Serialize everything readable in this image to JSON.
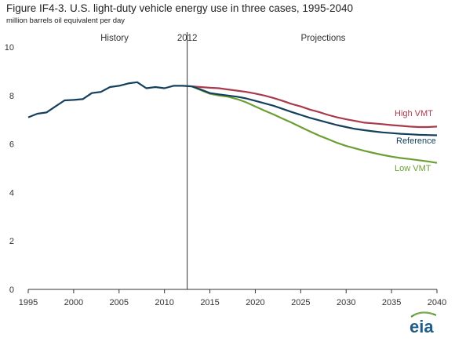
{
  "title": "Figure IF4-3. U.S. light-duty vehicle energy use in three cases, 1995-2040",
  "subtitle": "million barrels oil equivalent per day",
  "logo_text": "eia",
  "colors": {
    "high": "#a83a4b",
    "reference": "#14405e",
    "low": "#6c9f32",
    "axis": "#333333",
    "divider": "#333333"
  },
  "chart_data": {
    "type": "line",
    "xlim": [
      1995,
      2040
    ],
    "ylim": [
      0,
      10
    ],
    "x_ticks": [
      "1995",
      "2000",
      "2005",
      "2010",
      "2015",
      "2020",
      "2025",
      "2030",
      "2035",
      "2040"
    ],
    "y_ticks": [
      "0",
      "2",
      "4",
      "6",
      "8",
      "10"
    ],
    "divider_year": 2012.5,
    "regions": {
      "history": "History",
      "divider": "2012",
      "projections": "Projections"
    },
    "grid": false,
    "history": {
      "x": [
        1995,
        1996,
        1997,
        1998,
        1999,
        2000,
        2001,
        2002,
        2003,
        2004,
        2005,
        2006,
        2007,
        2008,
        2009,
        2010,
        2011,
        2012,
        2013
      ],
      "y": [
        7.1,
        7.25,
        7.3,
        7.55,
        7.8,
        7.82,
        7.85,
        8.1,
        8.15,
        8.35,
        8.4,
        8.5,
        8.55,
        8.3,
        8.35,
        8.3,
        8.4,
        8.4,
        8.38
      ]
    },
    "series": [
      {
        "name": "High VMT",
        "key": "high",
        "x": [
          2013,
          2014,
          2015,
          2016,
          2017,
          2018,
          2019,
          2020,
          2021,
          2022,
          2023,
          2024,
          2025,
          2026,
          2027,
          2028,
          2029,
          2030,
          2031,
          2032,
          2033,
          2034,
          2035,
          2036,
          2037,
          2038,
          2039,
          2040
        ],
        "y": [
          8.38,
          8.35,
          8.32,
          8.3,
          8.25,
          8.2,
          8.15,
          8.08,
          8.0,
          7.9,
          7.78,
          7.65,
          7.55,
          7.42,
          7.32,
          7.2,
          7.1,
          7.02,
          6.95,
          6.88,
          6.85,
          6.82,
          6.78,
          6.75,
          6.72,
          6.7,
          6.7,
          6.72
        ]
      },
      {
        "name": "Reference",
        "key": "reference",
        "x": [
          2013,
          2014,
          2015,
          2016,
          2017,
          2018,
          2019,
          2020,
          2021,
          2022,
          2023,
          2024,
          2025,
          2026,
          2027,
          2028,
          2029,
          2030,
          2031,
          2032,
          2033,
          2034,
          2035,
          2036,
          2037,
          2038,
          2039,
          2040
        ],
        "y": [
          8.38,
          8.25,
          8.1,
          8.05,
          8.0,
          7.95,
          7.88,
          7.78,
          7.68,
          7.58,
          7.45,
          7.32,
          7.2,
          7.08,
          6.98,
          6.88,
          6.78,
          6.7,
          6.62,
          6.57,
          6.52,
          6.48,
          6.45,
          6.42,
          6.4,
          6.38,
          6.37,
          6.36
        ]
      },
      {
        "name": "Low VMT",
        "key": "low",
        "x": [
          2013,
          2014,
          2015,
          2016,
          2017,
          2018,
          2019,
          2020,
          2021,
          2022,
          2023,
          2024,
          2025,
          2026,
          2027,
          2028,
          2029,
          2030,
          2031,
          2032,
          2033,
          2034,
          2035,
          2036,
          2037,
          2038,
          2039,
          2040
        ],
        "y": [
          8.38,
          8.22,
          8.07,
          8.0,
          7.95,
          7.85,
          7.72,
          7.55,
          7.38,
          7.22,
          7.05,
          6.88,
          6.7,
          6.52,
          6.35,
          6.2,
          6.05,
          5.92,
          5.82,
          5.72,
          5.63,
          5.55,
          5.48,
          5.42,
          5.38,
          5.33,
          5.28,
          5.22
        ]
      }
    ]
  }
}
